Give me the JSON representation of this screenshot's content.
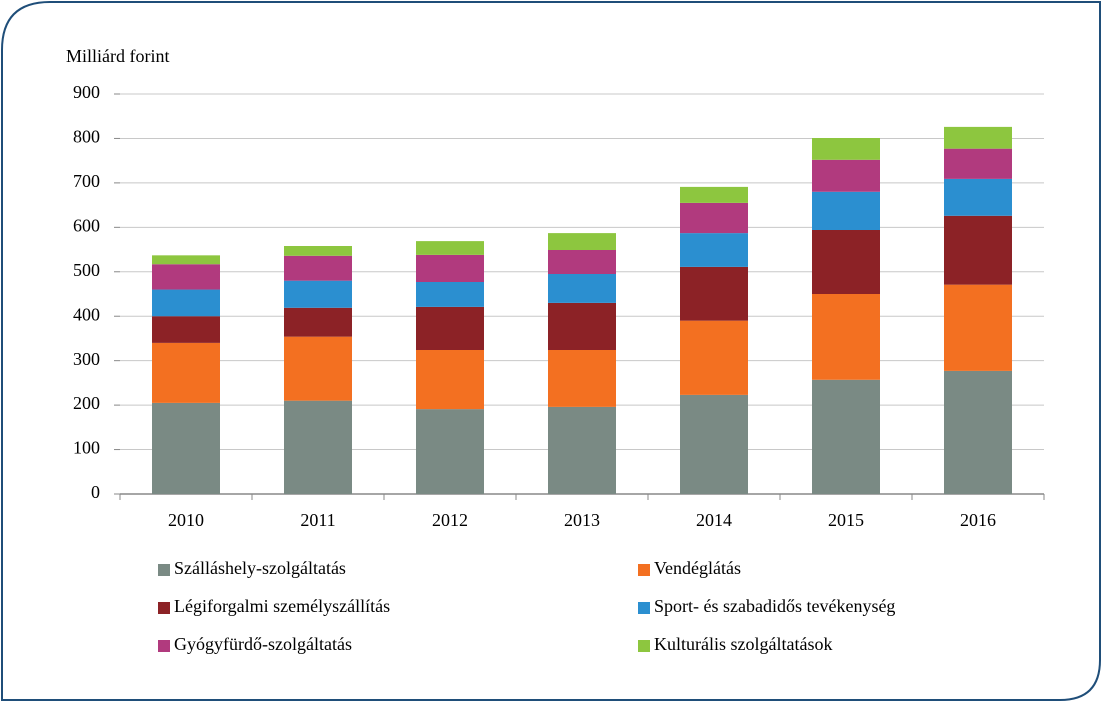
{
  "chart_data": {
    "type": "stacked_bar",
    "y_label": "Milliárd forint",
    "categories": [
      "2010",
      "2011",
      "2012",
      "2013",
      "2014",
      "2015",
      "2016"
    ],
    "series": [
      {
        "name": "Szálláshely-szolgáltatás",
        "color": "#7a8a84",
        "values": [
          205,
          210,
          191,
          196,
          223,
          257,
          277
        ]
      },
      {
        "name": "Vendéglátás",
        "color": "#f37021",
        "values": [
          135,
          144,
          133,
          128,
          167,
          193,
          194
        ]
      },
      {
        "name": "Légiforgalmi személyszállítás",
        "color": "#8c2226",
        "values": [
          60,
          65,
          97,
          106,
          121,
          144,
          155
        ]
      },
      {
        "name": "Sport- és szabadidős tevékenység",
        "color": "#2b8fd0",
        "values": [
          60,
          61,
          56,
          65,
          76,
          86,
          83
        ]
      },
      {
        "name": "Gyógyfürdő-szolgáltatás",
        "color": "#b13a7e",
        "values": [
          57,
          56,
          61,
          54,
          68,
          72,
          68
        ]
      },
      {
        "name": "Kulturális szolgáltatások",
        "color": "#8dc63f",
        "values": [
          20,
          22,
          31,
          38,
          36,
          49,
          49
        ]
      }
    ],
    "ylim": [
      0,
      900
    ],
    "yticks": [
      0,
      100,
      200,
      300,
      400,
      500,
      600,
      700,
      800,
      900
    ],
    "grid": true
  }
}
